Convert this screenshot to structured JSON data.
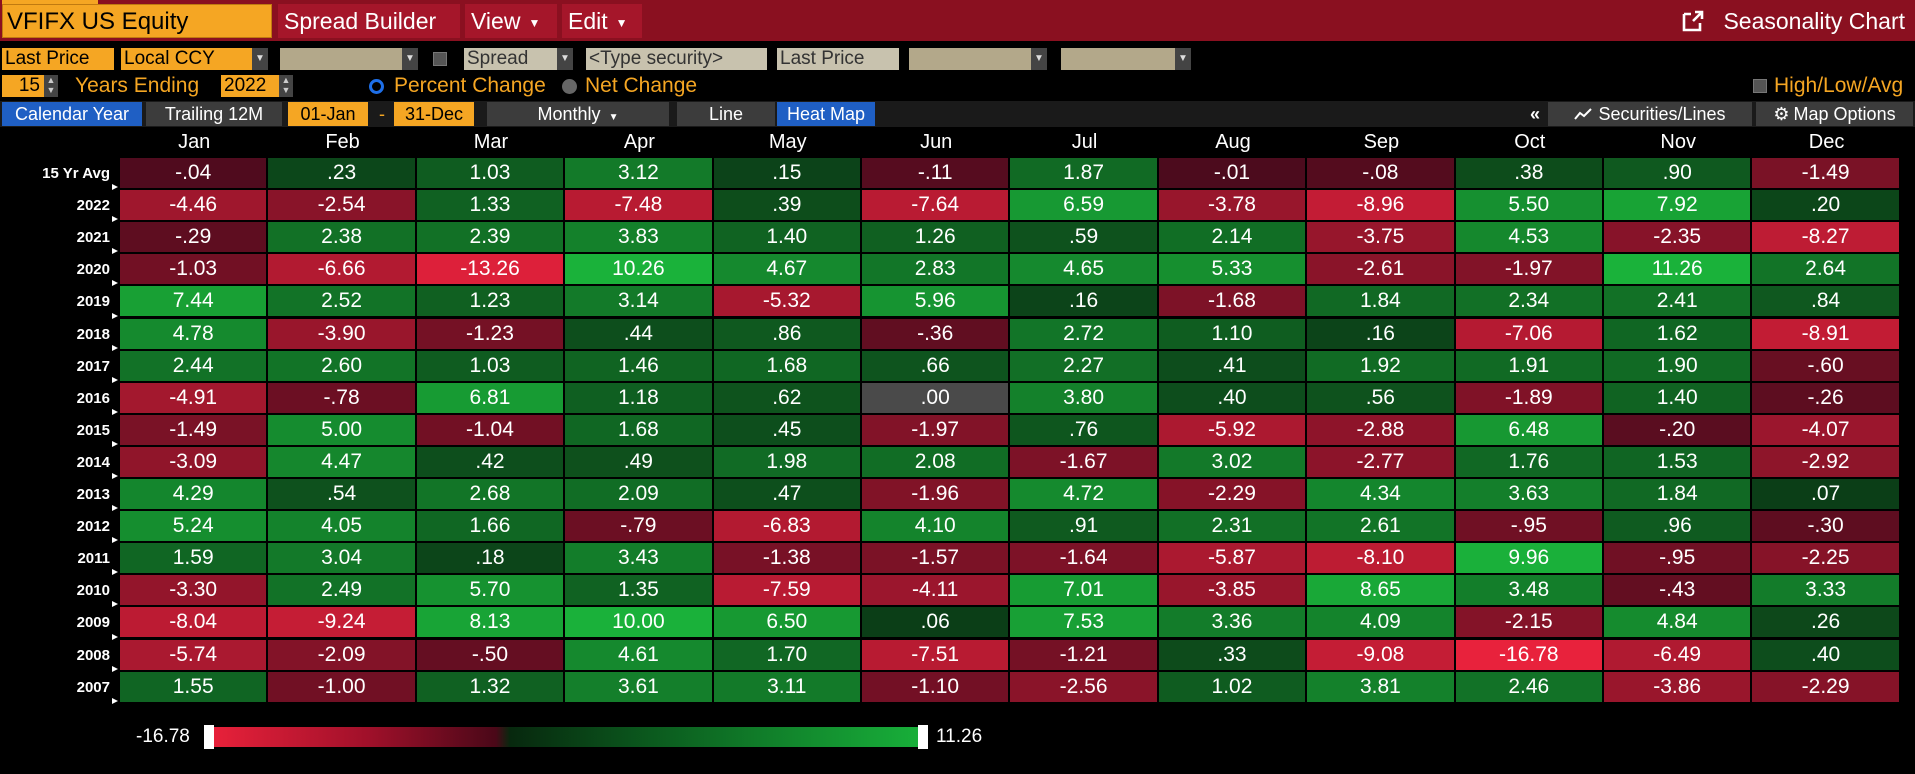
{
  "header": {
    "ticker": "VFIFX US Equity",
    "menus": [
      "Spread Builder",
      "View",
      "Edit"
    ],
    "title": "Seasonality Chart"
  },
  "controls": {
    "field1": "Last Price",
    "currency": "Local CCY",
    "spread_label": "Spread",
    "security_placeholder": "<Type security>",
    "field2": "Last Price",
    "years": "15",
    "years_ending_label": "Years Ending",
    "end_year": "2022",
    "percent_change_label": "Percent Change",
    "net_change_label": "Net Change",
    "high_low_avg_label": "High/Low/Avg",
    "percent_selected": true
  },
  "toolbar": {
    "calendar_year": "Calendar Year",
    "trailing_12m": "Trailing 12M",
    "start_date": "01-Jan",
    "dash": "-",
    "end_date": "31-Dec",
    "frequency": "Monthly",
    "line": "Line",
    "heat_map": "Heat Map",
    "collapse": "«",
    "securities_lines": "Securities/Lines",
    "map_options": "Map Options"
  },
  "table": {
    "columns": [
      "Jan",
      "Feb",
      "Mar",
      "Apr",
      "May",
      "Jun",
      "Jul",
      "Aug",
      "Sep",
      "Oct",
      "Nov",
      "Dec"
    ],
    "rows": [
      {
        "label": "15 Yr Avg",
        "values": [
          "-.04",
          ".23",
          "1.03",
          "3.12",
          ".15",
          "-.11",
          "1.87",
          "-.01",
          "-.08",
          ".38",
          ".90",
          "-1.49"
        ]
      },
      {
        "label": "2022",
        "values": [
          "-4.46",
          "-2.54",
          "1.33",
          "-7.48",
          ".39",
          "-7.64",
          "6.59",
          "-3.78",
          "-8.96",
          "5.50",
          "7.92",
          ".20"
        ]
      },
      {
        "label": "2021",
        "values": [
          "-.29",
          "2.38",
          "2.39",
          "3.83",
          "1.40",
          "1.26",
          ".59",
          "2.14",
          "-3.75",
          "4.53",
          "-2.35",
          "-8.27"
        ]
      },
      {
        "label": "2020",
        "values": [
          "-1.03",
          "-6.66",
          "-13.26",
          "10.26",
          "4.67",
          "2.83",
          "4.65",
          "5.33",
          "-2.61",
          "-1.97",
          "11.26",
          "2.64"
        ]
      },
      {
        "label": "2019",
        "values": [
          "7.44",
          "2.52",
          "1.23",
          "3.14",
          "-5.32",
          "5.96",
          ".16",
          "-1.68",
          "1.84",
          "2.34",
          "2.41",
          ".84"
        ]
      },
      {
        "label": "2018",
        "values": [
          "4.78",
          "-3.90",
          "-1.23",
          ".44",
          ".86",
          "-.36",
          "2.72",
          "1.10",
          ".16",
          "-7.06",
          "1.62",
          "-8.91"
        ]
      },
      {
        "label": "2017",
        "values": [
          "2.44",
          "2.60",
          "1.03",
          "1.46",
          "1.68",
          ".66",
          "2.27",
          ".41",
          "1.92",
          "1.91",
          "1.90",
          "-.60"
        ]
      },
      {
        "label": "2016",
        "values": [
          "-4.91",
          "-.78",
          "6.81",
          "1.18",
          ".62",
          ".00",
          "3.80",
          ".40",
          ".56",
          "-1.89",
          "1.40",
          "-.26"
        ]
      },
      {
        "label": "2015",
        "values": [
          "-1.49",
          "5.00",
          "-1.04",
          "1.68",
          ".45",
          "-1.97",
          ".76",
          "-5.92",
          "-2.88",
          "6.48",
          "-.20",
          "-4.07"
        ]
      },
      {
        "label": "2014",
        "values": [
          "-3.09",
          "4.47",
          ".42",
          ".49",
          "1.98",
          "2.08",
          "-1.67",
          "3.02",
          "-2.77",
          "1.76",
          "1.53",
          "-2.92"
        ]
      },
      {
        "label": "2013",
        "values": [
          "4.29",
          ".54",
          "2.68",
          "2.09",
          ".47",
          "-1.96",
          "4.72",
          "-2.29",
          "4.34",
          "3.63",
          "1.84",
          ".07"
        ]
      },
      {
        "label": "2012",
        "values": [
          "5.24",
          "4.05",
          "1.66",
          "-.79",
          "-6.83",
          "4.10",
          ".91",
          "2.31",
          "2.61",
          "-.95",
          ".96",
          "-.30"
        ]
      },
      {
        "label": "2011",
        "values": [
          "1.59",
          "3.04",
          ".18",
          "3.43",
          "-1.38",
          "-1.57",
          "-1.64",
          "-5.87",
          "-8.10",
          "9.96",
          "-.95",
          "-2.25"
        ]
      },
      {
        "label": "2010",
        "values": [
          "-3.30",
          "2.49",
          "5.70",
          "1.35",
          "-7.59",
          "-4.11",
          "7.01",
          "-3.85",
          "8.65",
          "3.48",
          "-.43",
          "3.33"
        ]
      },
      {
        "label": "2009",
        "values": [
          "-8.04",
          "-9.24",
          "8.13",
          "10.00",
          "6.50",
          ".06",
          "7.53",
          "3.36",
          "4.09",
          "-2.15",
          "4.84",
          ".26"
        ]
      },
      {
        "label": "2008",
        "values": [
          "-5.74",
          "-2.09",
          "-.50",
          "4.61",
          "1.70",
          "-7.51",
          "-1.21",
          ".33",
          "-9.08",
          "-16.78",
          "-6.49",
          ".40"
        ]
      },
      {
        "label": "2007",
        "values": [
          "1.55",
          "-1.00",
          "1.32",
          "3.61",
          "3.11",
          "-1.10",
          "-2.56",
          "1.02",
          "3.81",
          "2.46",
          "-3.86",
          "-2.29"
        ]
      }
    ]
  },
  "legend": {
    "min": -16.78,
    "max": 11.26,
    "min_label": "-16.78",
    "max_label": "11.26"
  },
  "colors": {
    "accent_orange": "#f5a623",
    "header_red": "#8a1020",
    "tab_blue": "#1f5fc4",
    "zero_grey": "#4a4a4a"
  }
}
